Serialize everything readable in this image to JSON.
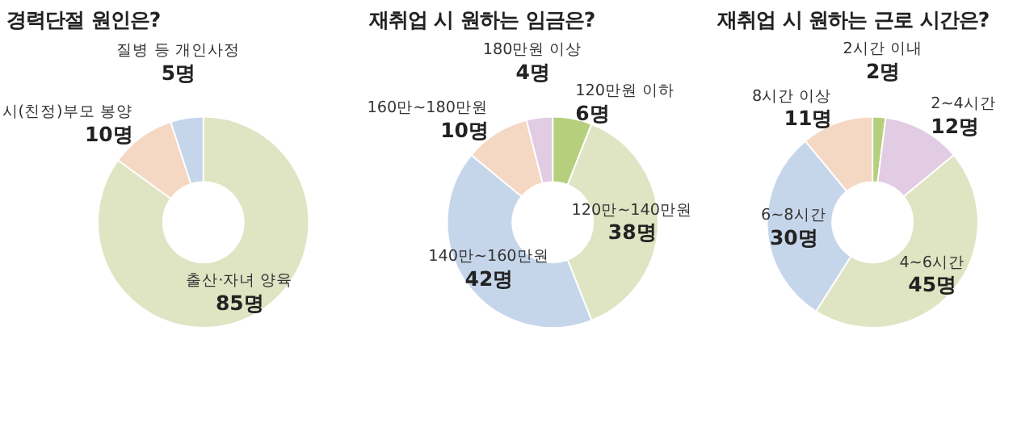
{
  "chart_data": [
    {
      "type": "donut",
      "title": "경력단절 원인은?",
      "categories": [
        "출산·자녀 양육",
        "시(친정)부모 봉양",
        "질병 등 개인사정"
      ],
      "values": [
        85,
        10,
        5
      ],
      "colors": [
        "#dfe5c3",
        "#f5d8c3",
        "#c6d6ea"
      ],
      "value_labels": [
        "85명",
        "10명",
        "5명"
      ]
    },
    {
      "type": "donut",
      "title": "재취업 시 원하는 임금은?",
      "categories": [
        "120만원 이하",
        "120만~140만원",
        "140만~160만원",
        "160만~180만원",
        "180만원 이상"
      ],
      "values": [
        6,
        38,
        42,
        10,
        4
      ],
      "colors": [
        "#b6cf7c",
        "#dfe5c3",
        "#c6d6ea",
        "#f5d8c3",
        "#e2cce4"
      ],
      "value_labels": [
        "6명",
        "38명",
        "42명",
        "10명",
        "4명"
      ]
    },
    {
      "type": "donut",
      "title": "재취업 시 원하는 근로 시간은?",
      "categories": [
        "2시간 이내",
        "2~4시간",
        "4~6시간",
        "6~8시간",
        "8시간 이상"
      ],
      "values": [
        2,
        12,
        45,
        30,
        11
      ],
      "colors": [
        "#b6cf7c",
        "#e2cce4",
        "#dfe5c3",
        "#c6d6ea",
        "#f5d8c3"
      ],
      "value_labels": [
        "2명",
        "12명",
        "45명",
        "30명",
        "11명"
      ]
    }
  ]
}
